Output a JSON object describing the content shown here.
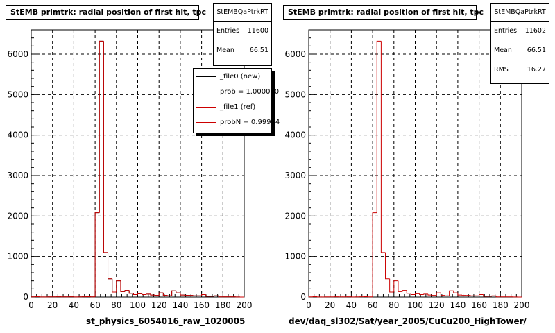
{
  "chart_data": [
    {
      "type": "histogram",
      "title": "StEMB primtrk: radial position of first hit, tpc",
      "xlabel": "st_physics_6054016_raw_1020005",
      "xlim": [
        0,
        200
      ],
      "ylim": [
        0,
        6600
      ],
      "grid": true,
      "x_ticks": [
        "0",
        "20",
        "40",
        "60",
        "80",
        "100",
        "120",
        "140",
        "160",
        "180",
        "200"
      ],
      "y_ticks": [
        "0",
        "1000",
        "2000",
        "3000",
        "4000",
        "5000",
        "6000"
      ],
      "bin_width": 4,
      "bins_x": [
        0,
        4,
        8,
        12,
        16,
        20,
        24,
        28,
        32,
        36,
        40,
        44,
        48,
        52,
        56,
        60,
        64,
        68,
        72,
        76,
        80,
        84,
        88,
        92,
        96,
        100,
        104,
        108,
        112,
        116,
        120,
        124,
        128,
        132,
        136,
        140,
        144,
        148,
        152,
        156,
        160,
        164,
        168,
        172,
        176,
        180,
        184,
        188,
        192,
        196
      ],
      "series": [
        {
          "name": "_file0 (new)",
          "color": "#000000",
          "values": [
            5,
            8,
            2,
            3,
            4,
            5,
            6,
            4,
            5,
            6,
            3,
            4,
            6,
            8,
            4,
            2080,
            6320,
            1100,
            450,
            120,
            400,
            130,
            160,
            90,
            60,
            80,
            60,
            70,
            50,
            40,
            100,
            40,
            30,
            150,
            100,
            50,
            40,
            40,
            30,
            30,
            60,
            20,
            20,
            30,
            5,
            5,
            5,
            5,
            2,
            0
          ]
        },
        {
          "name": "_file1 (ref)",
          "color": "#cc0000",
          "values": [
            5,
            8,
            2,
            3,
            4,
            5,
            6,
            4,
            5,
            6,
            3,
            4,
            6,
            8,
            4,
            2080,
            6320,
            1100,
            450,
            120,
            400,
            130,
            160,
            90,
            60,
            80,
            60,
            70,
            50,
            40,
            100,
            40,
            30,
            150,
            100,
            50,
            40,
            40,
            30,
            30,
            60,
            20,
            20,
            30,
            5,
            5,
            5,
            5,
            2,
            0
          ]
        }
      ],
      "stats": {
        "name": "StEMBQaPtrkRT",
        "entries_label": "Entries",
        "entries": "11600",
        "mean_label": "Mean",
        "mean": "66.51"
      },
      "legend": {
        "placement": "top-right",
        "entries": [
          {
            "label": "_file0 (new)",
            "color": "#000000"
          },
          {
            "label": "prob = 1.000000",
            "color": "#000000"
          },
          {
            "label": "_file1 (ref)",
            "color": "#cc0000"
          },
          {
            "label": "probN = 0.99994",
            "color": "#cc0000"
          }
        ]
      }
    },
    {
      "type": "histogram",
      "title": "StEMB primtrk: radial position of first hit, tpc",
      "xlabel": "dev/daq_sl302/Sat/year_2005/CuCu200_HighTower/",
      "xlim": [
        0,
        200
      ],
      "ylim": [
        0,
        6600
      ],
      "grid": true,
      "x_ticks": [
        "0",
        "20",
        "40",
        "60",
        "80",
        "100",
        "120",
        "140",
        "160",
        "180",
        "200"
      ],
      "y_ticks": [
        "0",
        "1000",
        "2000",
        "3000",
        "4000",
        "5000",
        "6000"
      ],
      "bin_width": 4,
      "bins_x": [
        0,
        4,
        8,
        12,
        16,
        20,
        24,
        28,
        32,
        36,
        40,
        44,
        48,
        52,
        56,
        60,
        64,
        68,
        72,
        76,
        80,
        84,
        88,
        92,
        96,
        100,
        104,
        108,
        112,
        116,
        120,
        124,
        128,
        132,
        136,
        140,
        144,
        148,
        152,
        156,
        160,
        164,
        168,
        172,
        176,
        180,
        184,
        188,
        192,
        196
      ],
      "series": [
        {
          "color": "#cc0000",
          "values": [
            5,
            8,
            2,
            3,
            4,
            5,
            6,
            4,
            5,
            6,
            3,
            4,
            6,
            8,
            4,
            2080,
            6320,
            1100,
            450,
            120,
            400,
            130,
            160,
            90,
            60,
            80,
            60,
            70,
            50,
            40,
            100,
            40,
            30,
            150,
            100,
            50,
            40,
            40,
            30,
            30,
            60,
            20,
            20,
            30,
            5,
            5,
            5,
            5,
            2,
            0
          ]
        }
      ],
      "stats": {
        "name": "StEMBQaPtrkRT",
        "entries_label": "Entries",
        "entries": "11602",
        "mean_label": "Mean",
        "mean": "66.51",
        "rms_label": "RMS",
        "rms": "16.27"
      }
    }
  ]
}
